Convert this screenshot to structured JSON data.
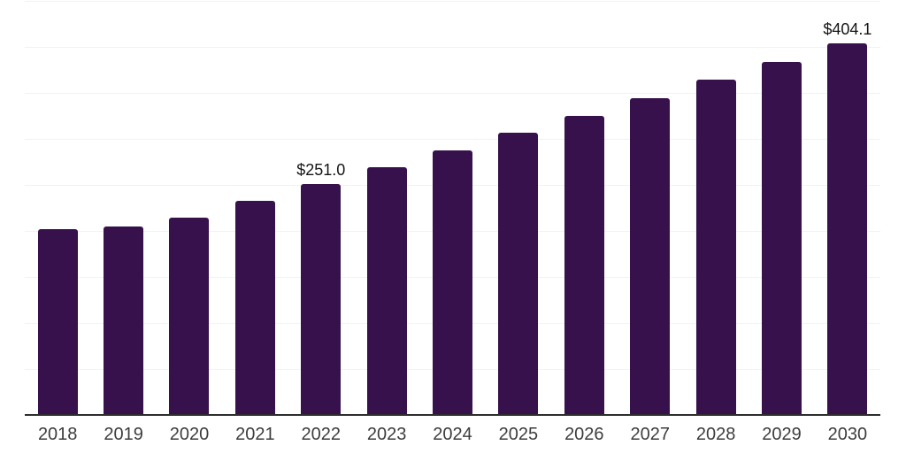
{
  "chart_data": {
    "type": "bar",
    "title": "",
    "xlabel": "",
    "ylabel": "",
    "categories": [
      "2018",
      "2019",
      "2020",
      "2021",
      "2022",
      "2023",
      "2024",
      "2025",
      "2026",
      "2027",
      "2028",
      "2029",
      "2030"
    ],
    "values": [
      202.0,
      205.0,
      214.5,
      232.5,
      251.0,
      269.0,
      287.5,
      306.5,
      325.0,
      344.0,
      364.0,
      383.5,
      404.1
    ],
    "data_labels": [
      "",
      "",
      "",
      "",
      "$251.0",
      "",
      "",
      "",
      "",
      "",
      "",
      "",
      "$404.1"
    ],
    "labeled_points": [
      {
        "category": "2022",
        "label": "$251.0",
        "value": 251.0
      },
      {
        "category": "2030",
        "label": "$404.1",
        "value": 404.1
      }
    ],
    "ylim": [
      0,
      450
    ],
    "grid": {
      "visible": true,
      "step": 50,
      "y_axis_tick_labels_visible": false
    },
    "legend": {
      "visible": false
    },
    "colors": {
      "bar": "#36114B",
      "gridline": "#f2f2f2",
      "axis_line": "#2d2d2d",
      "x_tick_label": "#3d3d3d",
      "data_label": "#151515",
      "background": "#ffffff"
    }
  }
}
